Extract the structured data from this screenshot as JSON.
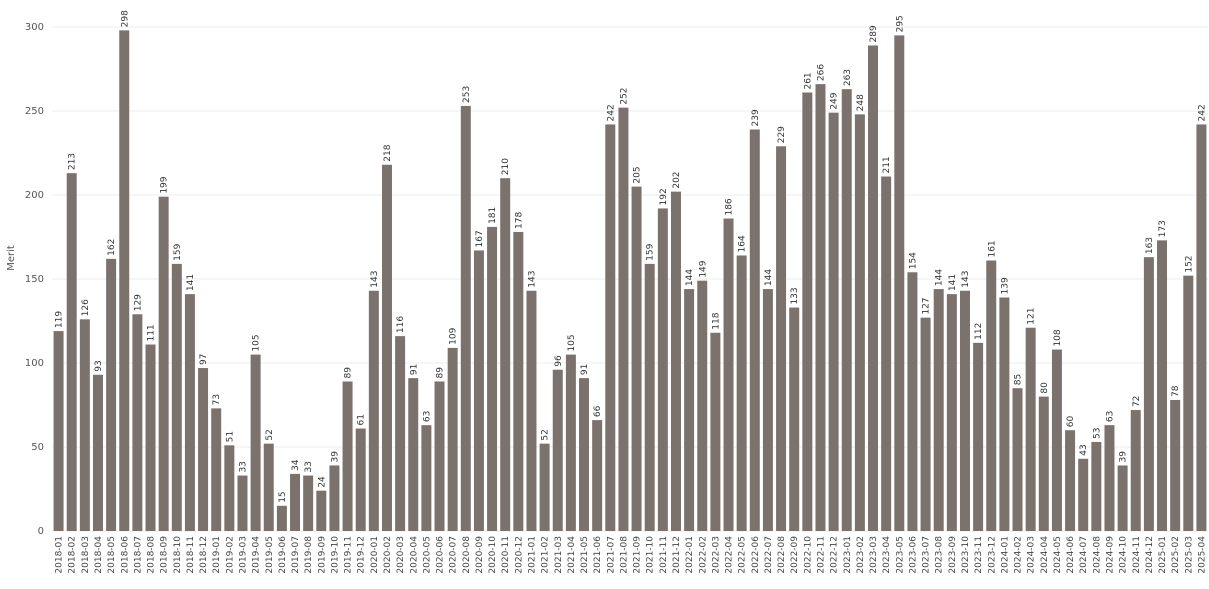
{
  "chart_data": {
    "type": "bar",
    "y_label": "Merit",
    "categories": [
      "2018-01",
      "2018-02",
      "2018-03",
      "2018-04",
      "2018-05",
      "2018-06",
      "2018-07",
      "2018-08",
      "2018-09",
      "2018-10",
      "2018-11",
      "2018-12",
      "2019-01",
      "2019-02",
      "2019-03",
      "2019-04",
      "2019-05",
      "2019-06",
      "2019-07",
      "2019-08",
      "2019-09",
      "2019-10",
      "2019-11",
      "2019-12",
      "2020-01",
      "2020-02",
      "2020-03",
      "2020-04",
      "2020-05",
      "2020-06",
      "2020-07",
      "2020-08",
      "2020-09",
      "2020-10",
      "2020-11",
      "2020-12",
      "2021-01",
      "2021-02",
      "2021-03",
      "2021-04",
      "2021-05",
      "2021-06",
      "2021-07",
      "2021-08",
      "2021-09",
      "2021-10",
      "2021-11",
      "2021-12",
      "2022-01",
      "2022-02",
      "2022-03",
      "2022-04",
      "2022-05",
      "2022-06",
      "2022-07",
      "2022-08",
      "2022-09",
      "2022-10",
      "2022-11",
      "2022-12",
      "2023-01",
      "2023-02",
      "2023-03",
      "2023-04",
      "2023-05",
      "2023-06",
      "2023-07",
      "2023-08",
      "2023-09",
      "2023-10",
      "2023-11",
      "2023-12",
      "2024-01",
      "2024-02",
      "2024-03",
      "2024-04",
      "2024-05",
      "2024-06",
      "2024-07",
      "2024-08",
      "2024-09",
      "2024-10",
      "2024-11",
      "2024-12",
      "2025-01",
      "2025-02",
      "2025-03",
      "2025-04"
    ],
    "values": [
      119,
      213,
      126,
      93,
      162,
      298,
      129,
      111,
      199,
      159,
      141,
      97,
      73,
      51,
      33,
      105,
      52,
      15,
      34,
      33,
      24,
      39,
      89,
      61,
      143,
      218,
      116,
      91,
      63,
      89,
      109,
      253,
      167,
      181,
      210,
      178,
      143,
      52,
      96,
      105,
      91,
      66,
      242,
      252,
      205,
      159,
      192,
      202,
      144,
      149,
      118,
      186,
      164,
      239,
      144,
      229,
      133,
      261,
      266,
      249,
      263,
      248,
      289,
      211,
      295,
      154,
      127,
      144,
      141,
      143,
      112,
      161,
      139,
      85,
      121,
      80,
      108,
      60,
      43,
      53,
      63,
      39,
      72,
      163,
      173,
      78,
      152,
      242
    ],
    "color": "#7b716d",
    "ylim": [
      0,
      300
    ],
    "yticks": [
      0,
      50,
      100,
      150,
      200,
      250,
      300
    ],
    "grid": true
  }
}
